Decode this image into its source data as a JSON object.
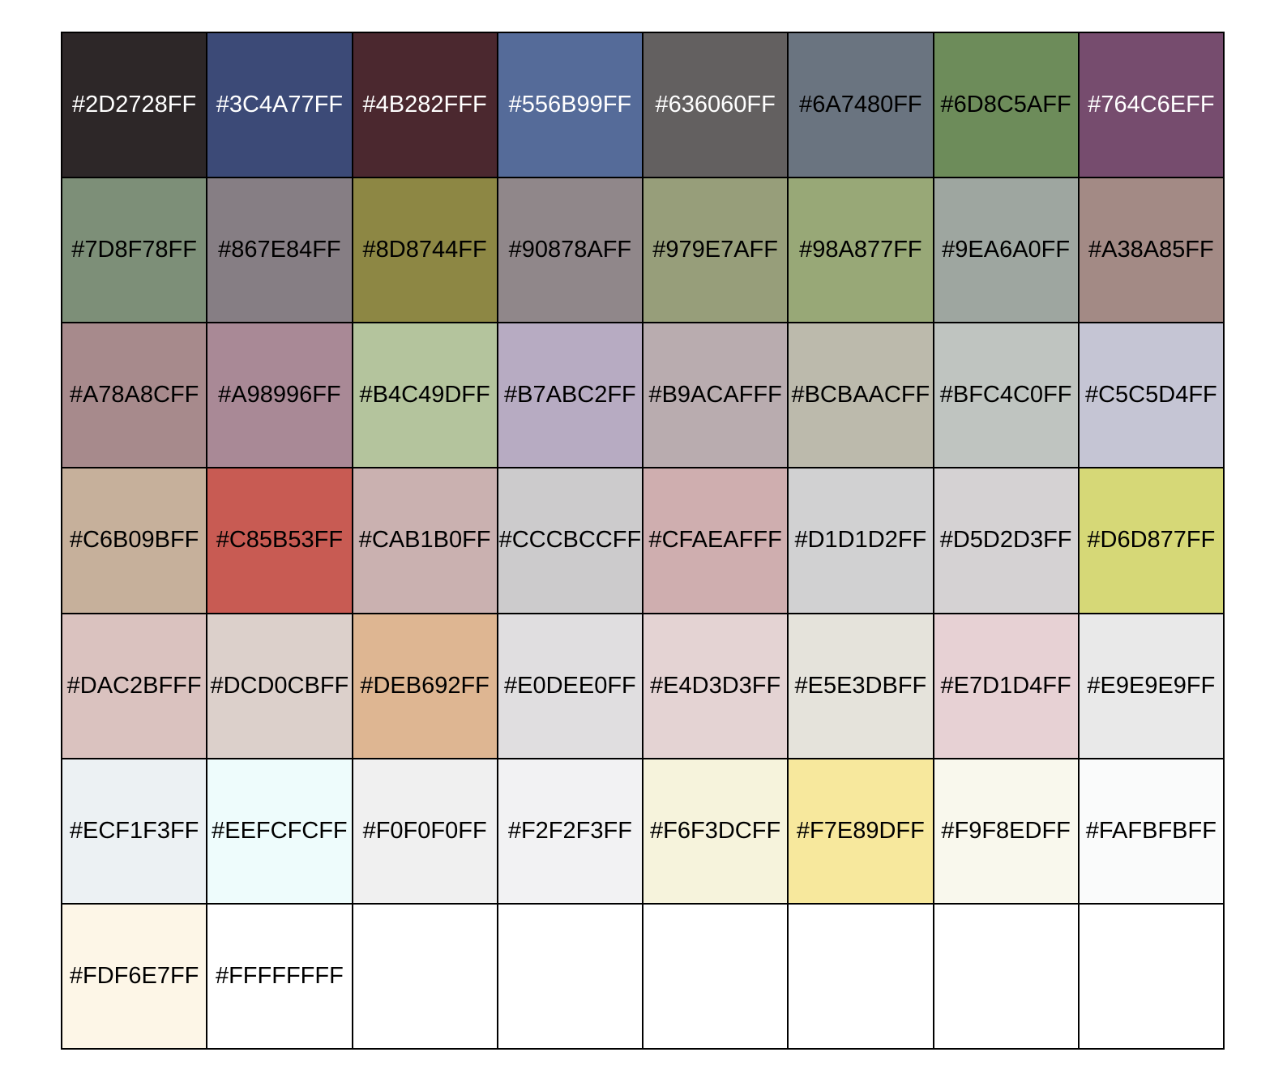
{
  "chart_data": {
    "type": "table",
    "columns": 8,
    "rows": 7,
    "colors": [
      "#2D2728FF",
      "#3C4A77FF",
      "#4B282FFF",
      "#556B99FF",
      "#636060FF",
      "#6A7480FF",
      "#6D8C5AFF",
      "#764C6EFF",
      "#7D8F78FF",
      "#867E84FF",
      "#8D8744FF",
      "#90878AFF",
      "#979E7AFF",
      "#98A877FF",
      "#9EA6A0FF",
      "#A38A85FF",
      "#A78A8CFF",
      "#A98996FF",
      "#B4C49DFF",
      "#B7ABC2FF",
      "#B9ACAFFF",
      "#BCBAACFF",
      "#BFC4C0FF",
      "#C5C5D4FF",
      "#C6B09BFF",
      "#C85B53FF",
      "#CAB1B0FF",
      "#CCCBCCFF",
      "#CFAEAFFF",
      "#D1D1D2FF",
      "#D5D2D3FF",
      "#D6D877FF",
      "#DAC2BFFF",
      "#DCD0CBFF",
      "#DEB692FF",
      "#E0DEE0FF",
      "#E4D3D3FF",
      "#E5E3DBFF",
      "#E7D1D4FF",
      "#E9E9E9FF",
      "#ECF1F3FF",
      "#EEFCFCFF",
      "#F0F0F0FF",
      "#F2F2F3FF",
      "#F6F3DCFF",
      "#F7E89DFF",
      "#F9F8EDFF",
      "#FAFBFBFF",
      "#FDF6E7FF",
      "#FFFFFFFF"
    ]
  }
}
